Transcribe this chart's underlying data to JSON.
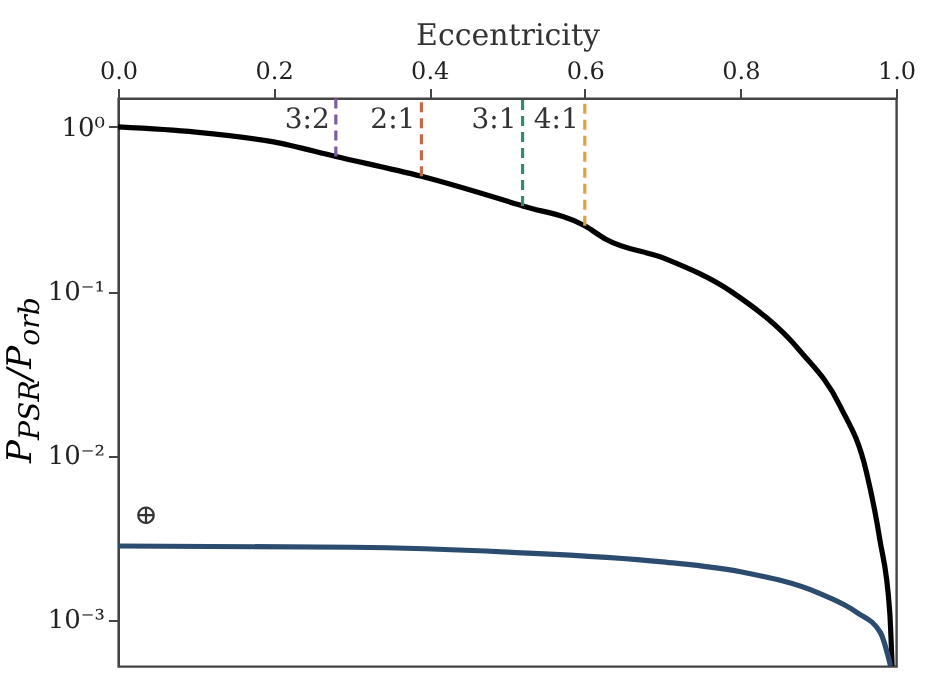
{
  "chart_data": {
    "type": "line",
    "xlabel": "Eccentricity",
    "ylabel": "P$_{PSR}$/P$_{orb}$",
    "xlim": [
      0,
      1
    ],
    "xticks": [
      {
        "value": 0,
        "label": "0.0"
      },
      0.2,
      0.4,
      0.6,
      0.8,
      {
        "value": 1,
        "label": "1.0"
      }
    ],
    "ylim": [
      0.00052,
      1.5
    ],
    "yticks": [
      {
        "value": 1,
        "label": "10⁰"
      },
      {
        "value": 0.1,
        "label": "10⁻¹"
      },
      {
        "value": 0.01,
        "label": "10⁻²"
      },
      {
        "value": 0.001,
        "label": "10⁻³"
      }
    ],
    "log": "y",
    "grid": false,
    "line_style": "solid",
    "series": [
      {
        "color": "#000000",
        "x": [
          0,
          0.1,
          0.2,
          0.28,
          0.39,
          0.52,
          0.6,
          0.627,
          0.704,
          0.79,
          0.877,
          0.928,
          0.962,
          0.979,
          0.992,
          0.995
        ],
        "values": [
          1.0,
          0.93,
          0.81,
          0.66,
          0.5,
          0.33,
          0.25,
          0.207,
          0.157,
          0.098,
          0.043,
          0.02,
          0.0079,
          0.0031,
          0.0011,
          0.00052
        ]
      },
      {
        "color": "#2b4c6f",
        "x": [
          0,
          0.3,
          0.5,
          0.7,
          0.8,
          0.9,
          0.95,
          0.98,
          0.993
        ],
        "values": [
          0.0028,
          0.00275,
          0.00257,
          0.00224,
          0.00195,
          0.00145,
          0.0011,
          0.00083,
          0.00052
        ]
      },
      {
        "color": "#7b5aa6",
        "line_style": "dashed",
        "x": [
          0.28,
          0.28
        ],
        "values": [
          0.66,
          1.5
        ]
      },
      {
        "color": "#c46a4a",
        "line_style": "dashed",
        "x": [
          0.39,
          0.39
        ],
        "values": [
          0.5,
          1.5
        ]
      },
      {
        "color": "#3a8a6a",
        "line_style": "dashed",
        "x": [
          0.52,
          0.52
        ],
        "values": [
          0.33,
          1.5
        ]
      },
      {
        "color": "#e0a040",
        "line_style": "dashed",
        "x": [
          0.6,
          0.6
        ],
        "values": [
          0.25,
          1.5
        ]
      }
    ],
    "annotations": [
      {
        "text": "3:2",
        "x": 0.28,
        "y": 1.1
      },
      {
        "text": "2:1",
        "x": 0.39,
        "y": 1.1
      },
      {
        "text": "3:1",
        "x": 0.52,
        "y": 1.1
      },
      {
        "text": "4:1",
        "x": 0.6,
        "y": 1.1
      },
      "⊕"
    ]
  }
}
